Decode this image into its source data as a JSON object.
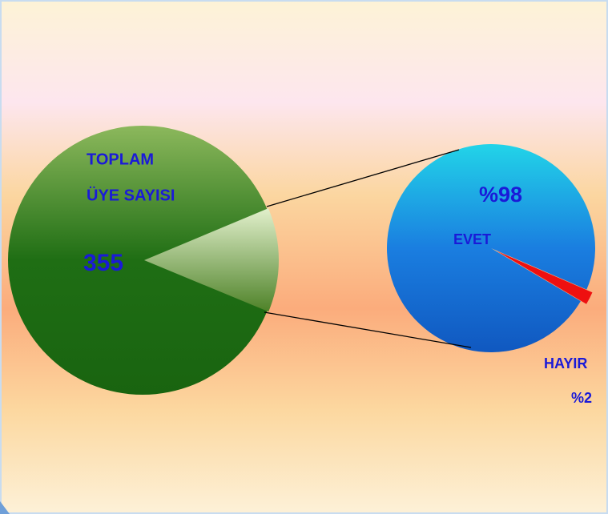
{
  "chart_data": {
    "type": "pie",
    "total_label": [
      "TOPLAM",
      "ÜYE SAYISI"
    ],
    "total": 355,
    "categories": [
      "EVET",
      "HAYIR"
    ],
    "values": [
      98,
      2
    ],
    "value_labels": [
      "%98",
      "%2"
    ],
    "colors": [
      "#1a78dc",
      "#ee1010"
    ],
    "total_color": "#2a7a1c"
  }
}
